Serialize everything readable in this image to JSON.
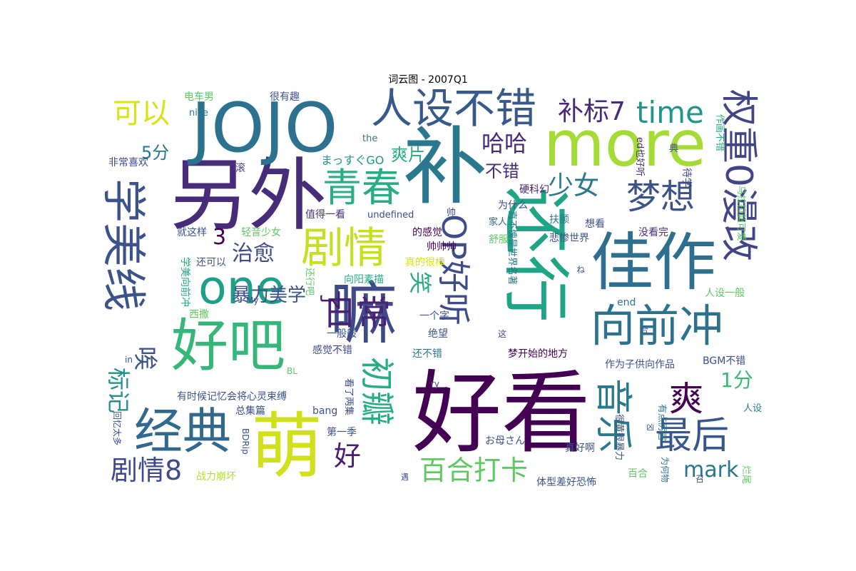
{
  "title": "词云图 - 2007Q1",
  "words": [
    {
      "text": "好看",
      "color": "#440154"
    },
    {
      "text": "补",
      "color": "#2a788e"
    },
    {
      "text": "另外",
      "color": "#472c7a"
    },
    {
      "text": "JOJO",
      "color": "#2c718e"
    },
    {
      "text": "more",
      "color": "#a5db36"
    },
    {
      "text": "萌",
      "color": "#d0e11c"
    },
    {
      "text": "嘛",
      "color": "#3e4a89"
    },
    {
      "text": "还行",
      "color": "#20a486"
    },
    {
      "text": "佳作",
      "color": "#2e6e8e"
    },
    {
      "text": "好吧",
      "color": "#35b779"
    },
    {
      "text": "经典",
      "color": "#31688e"
    },
    {
      "text": "one",
      "color": "#1f9e89"
    },
    {
      "text": "学美线",
      "color": "#3b528b"
    },
    {
      "text": "人设不错",
      "color": "#38598c"
    },
    {
      "text": "向前冲",
      "color": "#2c728e"
    },
    {
      "text": "剧情",
      "color": "#c5e021"
    },
    {
      "text": "青春",
      "color": "#28ae80"
    },
    {
      "text": "权重0漫改",
      "color": "#414487"
    },
    {
      "text": "OP好听",
      "color": "#3e4c8a"
    },
    {
      "text": "音乐",
      "color": "#2a788e"
    },
    {
      "text": "梦想",
      "color": "#3b528b"
    },
    {
      "text": "日常",
      "color": "#482374"
    },
    {
      "text": "初瓣",
      "color": "#29af7f"
    },
    {
      "text": "最后",
      "color": "#39568c"
    },
    {
      "text": "爽",
      "color": "#440154"
    },
    {
      "text": "time",
      "color": "#1f968b"
    },
    {
      "text": "可以",
      "color": "#d8e219"
    },
    {
      "text": "百合打卡",
      "color": "#5ec962"
    },
    {
      "text": "剧情8",
      "color": "#3e4a89"
    },
    {
      "text": "好",
      "color": "#481f70"
    },
    {
      "text": "mark",
      "color": "#2a768e"
    },
    {
      "text": "补标7",
      "color": "#482878"
    },
    {
      "text": "少女",
      "color": "#2a788e"
    },
    {
      "text": "唉",
      "color": "#3b528b"
    },
    {
      "text": "标记",
      "color": "#21918c"
    },
    {
      "text": "哈哈",
      "color": "#482979"
    },
    {
      "text": "治愈",
      "color": "#3e4a89"
    },
    {
      "text": "笑",
      "color": "#27ad81"
    },
    {
      "text": "1分",
      "color": "#38b977"
    },
    {
      "text": "暴力美学",
      "color": "#3b528b"
    },
    {
      "text": "3",
      "color": "#440154"
    },
    {
      "text": "5分",
      "color": "#2a788e"
    },
    {
      "text": "了",
      "color": "#481769"
    },
    {
      "text": "不错",
      "color": "#472d7b"
    },
    {
      "text": "爽片",
      "color": "#29af7f"
    },
    {
      "text": "まっすぐGO",
      "color": "#1f968b"
    },
    {
      "text": "电车男",
      "color": "#5ec962"
    },
    {
      "text": "很有趣",
      "color": "#3b528b"
    },
    {
      "text": "nice",
      "color": "#2a788e"
    },
    {
      "text": "非常喜欢",
      "color": "#3e4a89"
    },
    {
      "text": "滚",
      "color": "#404688"
    },
    {
      "text": "the",
      "color": "#2a788e"
    },
    {
      "text": "ed也好听",
      "color": "#472c7a"
    },
    {
      "text": "作画不错",
      "color": "#25ab82"
    },
    {
      "text": "典",
      "color": "#3b528b"
    },
    {
      "text": "待学",
      "color": "#414487"
    },
    {
      "text": "硬科幻",
      "color": "#482374"
    },
    {
      "text": "帅",
      "color": "#3e4a89"
    },
    {
      "text": "值得一看",
      "color": "#46337e"
    },
    {
      "text": "undefined",
      "color": "#3b528b"
    },
    {
      "text": "为什么",
      "color": "#3e4a89"
    },
    {
      "text": "家人",
      "color": "#31688e"
    },
    {
      "text": "扶额",
      "color": "#2a788e"
    },
    {
      "text": "想看",
      "color": "#3b528b"
    },
    {
      "text": "乌拉拉超可爱",
      "color": "#5ec962"
    },
    {
      "text": "就这样",
      "color": "#3b528b"
    },
    {
      "text": "轻音少女",
      "color": "#5ec962"
    },
    {
      "text": "的感觉",
      "color": "#440154"
    },
    {
      "text": "舒服",
      "color": "#5ec962"
    },
    {
      "text": "真不愧是世界名著",
      "color": "#2a788e"
    },
    {
      "text": "悲惨世界",
      "color": "#3b528b"
    },
    {
      "text": "没看完",
      "color": "#472d7b"
    },
    {
      "text": "帅帅帅",
      "color": "#440154"
    },
    {
      "text": "学美向前冲",
      "color": "#22a785"
    },
    {
      "text": "还可以",
      "color": "#3b528b"
    },
    {
      "text": "真的很棒",
      "color": "#d8e219"
    },
    {
      "text": "向阳素描",
      "color": "#25ab82"
    },
    {
      "text": "还行吧",
      "color": "#5ec962"
    },
    {
      "text": "My",
      "color": "#3b528b"
    },
    {
      "text": "ね",
      "color": "#3b528b"
    },
    {
      "text": "人设一般",
      "color": "#5ec962"
    },
    {
      "text": "end",
      "color": "#2a788e"
    },
    {
      "text": "西撒",
      "color": "#5ec962"
    },
    {
      "text": "一个字",
      "color": "#3b528b"
    },
    {
      "text": "一般般",
      "color": "#3b528b"
    },
    {
      "text": "绝望",
      "color": "#3b528b"
    },
    {
      "text": "这",
      "color": "#3b528b"
    },
    {
      "text": "合",
      "color": "#3b528b"
    },
    {
      "text": "感觉不错",
      "color": "#3e4a89"
    },
    {
      "text": "还不错",
      "color": "#2a788e"
    },
    {
      "text": "梦开始的地方",
      "color": "#440154"
    },
    {
      "text": "BGM不错",
      "color": "#3b528b"
    },
    {
      "text": "in",
      "color": "#3b528b"
    },
    {
      "text": "BL",
      "color": "#5ec962"
    },
    {
      "text": "作为子供向作品",
      "color": "#3b528b"
    },
    {
      "text": "有时候记忆会将心灵束缚",
      "color": "#3b528b"
    },
    {
      "text": "看了两集",
      "color": "#3e4a89"
    },
    {
      "text": "有点厉害",
      "color": "#2a788e"
    },
    {
      "text": "很黄很暴力",
      "color": "#3b528b"
    },
    {
      "text": "人设",
      "color": "#2a788e"
    },
    {
      "text": "回忆太多",
      "color": "#3b528b"
    },
    {
      "text": "总集篇",
      "color": "#3b528b"
    },
    {
      "text": "bang",
      "color": "#3b528b"
    },
    {
      "text": "BDRip",
      "color": "#3b528b"
    },
    {
      "text": "第一季",
      "color": "#3b528b"
    },
    {
      "text": "お母さん",
      "color": "#3b528b"
    },
    {
      "text": "为何物",
      "color": "#2a788e"
    },
    {
      "text": "真好啊",
      "color": "#3b528b"
    },
    {
      "text": "百合",
      "color": "#5ec962"
    },
    {
      "text": "战力崩坏",
      "color": "#b5de2b"
    },
    {
      "text": "体型差好恐怖",
      "color": "#3b528b"
    },
    {
      "text": "烂尾",
      "color": "#5ec962"
    },
    {
      "text": "召",
      "color": "#3b528b"
    },
    {
      "text": "遇",
      "color": "#3b528b"
    },
    {
      "text": "凶",
      "color": "#3b528b"
    },
    {
      "text": "ry",
      "color": "#3b528b"
    }
  ]
}
